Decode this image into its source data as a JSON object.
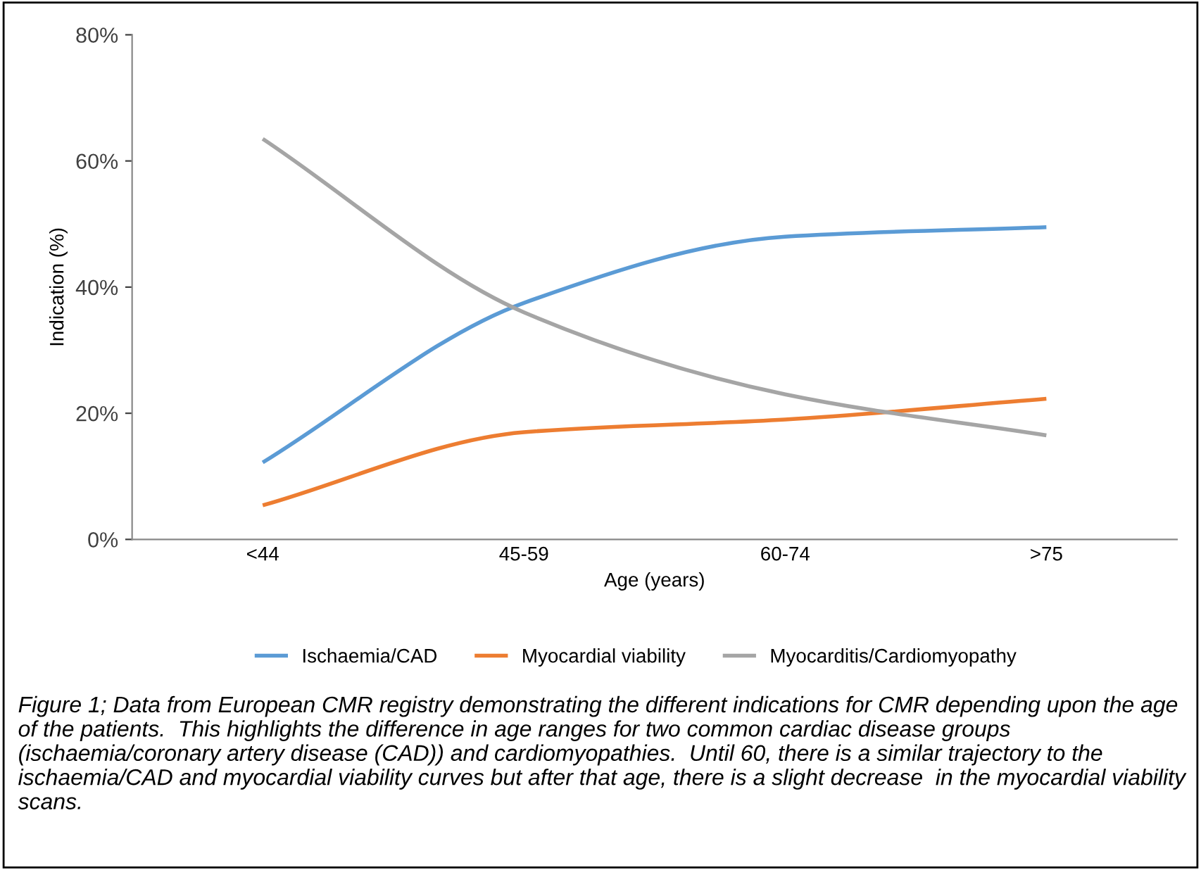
{
  "chart_data": {
    "type": "line",
    "xlabel": "Age (years)",
    "ylabel": "Indication (%)",
    "categories": [
      "<44",
      "45-59",
      "60-74",
      ">75"
    ],
    "series": [
      {
        "name": "Ischaemia/CAD",
        "color": "#5b9bd5",
        "values": [
          12.2,
          37.5,
          48,
          49.5
        ]
      },
      {
        "name": "Myocardial viability",
        "color": "#ed7d31",
        "values": [
          5.4,
          17,
          19,
          22.3
        ]
      },
      {
        "name": "Myocarditis/Cardiomyopathy",
        "color": "#a5a5a5",
        "values": [
          63.5,
          36,
          23,
          16.5
        ]
      }
    ],
    "ylim": [
      0,
      80
    ],
    "yticks": [
      {
        "value": 0,
        "label": "0%"
      },
      {
        "value": 20,
        "label": "20%"
      },
      {
        "value": 40,
        "label": "40%"
      },
      {
        "value": 60,
        "label": "60%"
      },
      {
        "value": 80,
        "label": "80%"
      }
    ],
    "legend": "bottom",
    "grid": false,
    "marker": "none",
    "line_style": "solid",
    "annotations": [
      "Figure 1; Data from European CMR registry demonstrating the different indications for CMR depending upon the age of the patients.  This highlights the difference in age ranges for two common cardiac disease groups (ischaemia/coronary artery disease (CAD)) and cardiomyopathies.  Until 60, there is a similar trajectory to the ischaemia/CAD and myocardial viability curves but after that age, there is a slight decrease  in the myocardial viability scans."
    ]
  }
}
